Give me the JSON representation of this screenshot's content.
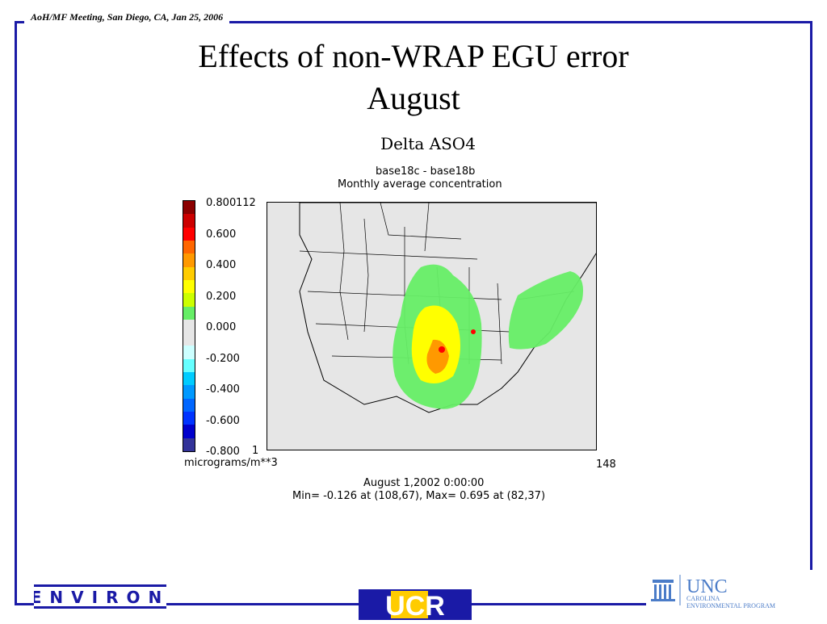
{
  "header": {
    "meeting": "AoH/MF Meeting, San Diego, CA,  Jan 25, 2006",
    "title_line1": "Effects of non-WRAP EGU error",
    "title_line2": "August"
  },
  "plot": {
    "title": "Delta ASO4",
    "subtitle1": "base18c - base18b",
    "subtitle2": "Monthly average concentration",
    "legend_labels": [
      "0.800",
      "0.600",
      "0.400",
      "0.200",
      "0.000",
      "-0.200",
      "-0.400",
      "-0.600",
      "-0.800"
    ],
    "legend_colors": [
      "#8b0000",
      "#cc0000",
      "#ff0000",
      "#ff6600",
      "#ff9900",
      "#ffcc00",
      "#ffff00",
      "#ccff00",
      "#66ee66",
      "#e6e6e6",
      "#e6e6e6",
      "#ccffff",
      "#66ffff",
      "#00ccff",
      "#0099ff",
      "#0066ff",
      "#0033ff",
      "#0000cc",
      "#333399"
    ],
    "y_top": "112",
    "y_bottom": "1",
    "x_right": "148",
    "units": "micrograms/m**3",
    "date": "August 1,2002 0:00:00",
    "minmax": "Min=  -0.126 at (108,67), Max=   0.695 at (82,37)"
  },
  "logos": {
    "environ": "ENVIRON",
    "ucr": "UCR",
    "unc": "UNC",
    "unc_sub1": "CAROLINA",
    "unc_sub2": "ENVIRONMENTAL PROGRAM"
  }
}
